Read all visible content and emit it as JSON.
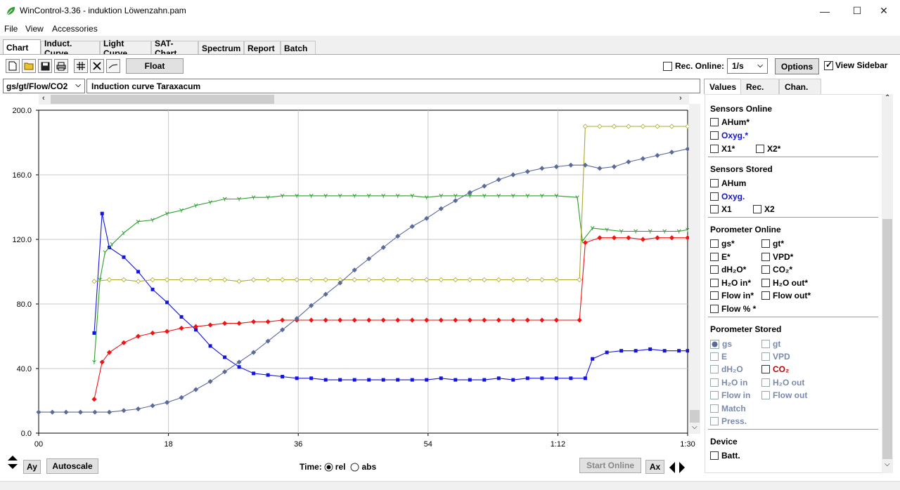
{
  "window": {
    "title": "WinControl-3.36 - induktion Löwenzahn.pam",
    "minimize": "—",
    "maximize": "☐",
    "close": "✕"
  },
  "menu": [
    "File",
    "View",
    "Accessories"
  ],
  "tabs": [
    "Chart",
    "Induct. Curve",
    "Light Curve",
    "SAT-Chart",
    "Spectrum",
    "Report",
    "Batch"
  ],
  "toolbar": {
    "icons": [
      "new-file-icon",
      "open-folder-icon",
      "save-icon",
      "print-icon",
      "grid-icon",
      "cross-icon",
      "line-icon"
    ],
    "float_label": "Float",
    "rec_online_label": "Rec. Online:",
    "rate_value": "1/s",
    "options_label": "Options",
    "view_sidebar_label": "View Sidebar",
    "view_sidebar_checked": true
  },
  "chart_header": {
    "channel": "gs/gt/Flow/CO2",
    "curve_name": "Induction curve Taraxacum"
  },
  "chart_data": {
    "type": "line",
    "xlabel": "",
    "ylabel": "",
    "xlim": [
      0,
      90
    ],
    "ylim": [
      0,
      200
    ],
    "x_ticks": [
      0,
      18,
      36,
      54,
      72,
      90
    ],
    "x_tick_labels": [
      "00",
      "18",
      "36",
      "54",
      "1:12",
      "1:30"
    ],
    "y_ticks": [
      0,
      40,
      80,
      120,
      160,
      200
    ],
    "y_tick_labels": [
      "0.0",
      "40.0",
      "80.0",
      "120.0",
      "160.0",
      "200.0"
    ],
    "grid": true,
    "series": [
      {
        "color": "#1414e0",
        "marker": "square",
        "x": [
          7.7,
          8.8,
          9.8,
          11.8,
          13.8,
          15.8,
          17.8,
          19.8,
          21.8,
          23.8,
          25.8,
          27.8,
          29.8,
          31.8,
          33.8,
          35.8,
          37.8,
          39.8,
          41.8,
          43.8,
          45.8,
          47.8,
          49.8,
          51.8,
          53.8,
          55.8,
          57.8,
          59.8,
          61.8,
          63.8,
          65.8,
          67.8,
          69.8,
          71.8,
          73.8,
          75.8,
          76.8,
          78.8,
          80.8,
          82.8,
          84.8,
          86.8,
          88.8,
          90
        ],
        "y": [
          62,
          136,
          115,
          109,
          100,
          89,
          81,
          72,
          64,
          54,
          47,
          41,
          37,
          36,
          35,
          34,
          34,
          33,
          33,
          33,
          33,
          33,
          33,
          33,
          33,
          34,
          33,
          33,
          33,
          34,
          33,
          34,
          34,
          34,
          34,
          34,
          46,
          50,
          51,
          51,
          52,
          51,
          51,
          51
        ]
      },
      {
        "color": "#2aa02a",
        "marker": "tick",
        "x": [
          7.7,
          8.5,
          9.2,
          10.2,
          11.8,
          13.8,
          15.8,
          17.8,
          19.8,
          21.8,
          23.8,
          25.8,
          27.8,
          29.8,
          31.8,
          33.8,
          35.8,
          37.8,
          39.8,
          41.8,
          43.8,
          45.8,
          47.8,
          49.8,
          51.8,
          53.8,
          55.8,
          57.8,
          59.8,
          61.8,
          63.8,
          65.8,
          67.8,
          69.8,
          71.8,
          74.7,
          75.4,
          76.8,
          78.8,
          80.8,
          82.8,
          84.8,
          86.8,
          88.8,
          90
        ],
        "y": [
          44,
          95,
          112,
          117,
          124,
          131,
          132,
          136,
          138,
          141,
          143,
          145,
          145,
          146,
          146,
          147,
          147,
          147,
          147,
          147,
          147,
          147,
          147,
          147,
          147,
          146,
          147,
          147,
          147,
          147,
          147,
          147,
          147,
          147,
          147,
          146,
          119,
          127,
          126,
          125,
          125,
          125,
          125,
          125,
          126
        ]
      },
      {
        "color": "#aaa82a",
        "marker": "diamond",
        "x": [
          7.7,
          9.8,
          11.8,
          13.8,
          15.8,
          17.8,
          19.8,
          21.8,
          23.8,
          25.8,
          27.8,
          29.8,
          31.8,
          33.8,
          35.8,
          37.8,
          39.8,
          41.8,
          43.8,
          45.8,
          47.8,
          49.8,
          51.8,
          53.8,
          55.8,
          57.8,
          59.8,
          61.8,
          63.8,
          65.8,
          67.8,
          69.8,
          71.8,
          75.0,
          75.8,
          77.8,
          79.8,
          81.8,
          83.8,
          85.8,
          87.8,
          90
        ],
        "y": [
          94,
          95,
          95,
          94,
          95,
          95,
          95,
          95,
          95,
          95,
          94,
          95,
          95,
          95,
          95,
          95,
          95,
          95,
          95,
          95,
          95,
          95,
          95,
          95,
          95,
          95,
          95,
          95,
          95,
          95,
          95,
          95,
          95,
          95,
          190,
          190,
          190,
          190,
          190,
          190,
          190,
          190
        ]
      },
      {
        "color": "#ee1414",
        "marker": "diamond",
        "x": [
          7.7,
          8.8,
          9.8,
          11.8,
          13.8,
          15.8,
          17.8,
          19.8,
          21.8,
          23.8,
          25.8,
          27.8,
          29.8,
          31.8,
          33.8,
          35.8,
          37.8,
          39.8,
          41.8,
          43.8,
          45.8,
          47.8,
          49.8,
          51.8,
          53.8,
          55.8,
          57.8,
          59.8,
          61.8,
          63.8,
          65.8,
          67.8,
          69.8,
          71.8,
          75.0,
          75.8,
          77.8,
          79.8,
          81.8,
          83.8,
          85.8,
          87.8,
          90
        ],
        "y": [
          21,
          44,
          50,
          56,
          60,
          62,
          63,
          65,
          66,
          67,
          68,
          68,
          69,
          69,
          70,
          70,
          70,
          70,
          70,
          70,
          70,
          70,
          70,
          70,
          70,
          70,
          70,
          70,
          70,
          70,
          70,
          70,
          70,
          70,
          70,
          118,
          121,
          121,
          121,
          120,
          121,
          121,
          121
        ]
      },
      {
        "color": "#5a6a9a",
        "marker": "diamond",
        "x": [
          0,
          1.9,
          3.8,
          5.8,
          7.8,
          9.8,
          11.8,
          13.8,
          15.8,
          17.8,
          19.8,
          21.8,
          23.8,
          25.8,
          27.8,
          29.8,
          31.8,
          33.8,
          35.8,
          37.8,
          39.8,
          41.8,
          43.8,
          45.8,
          47.8,
          49.8,
          51.8,
          53.8,
          55.8,
          57.8,
          59.8,
          61.8,
          63.8,
          65.8,
          67.8,
          69.8,
          71.8,
          73.8,
          75.8,
          77.8,
          79.8,
          81.8,
          83.8,
          85.8,
          87.8,
          90
        ],
        "y": [
          13,
          13,
          13,
          13,
          13,
          13,
          14,
          15,
          17,
          19,
          22,
          27,
          32,
          38,
          44,
          50,
          57,
          64,
          71,
          79,
          86,
          93,
          101,
          108,
          115,
          122,
          128,
          133,
          139,
          144,
          149,
          153,
          157,
          160,
          162,
          164,
          165,
          166,
          166,
          164,
          165,
          168,
          170,
          172,
          174,
          176
        ]
      }
    ]
  },
  "bottom": {
    "ay_label": "Ay",
    "autoscale_label": "Autoscale",
    "time_label": "Time:",
    "rel_label": "rel",
    "abs_label": "abs",
    "time_mode": "rel",
    "start_online_label": "Start Online",
    "ax_label": "Ax"
  },
  "sidebar": {
    "tabs": [
      "Values",
      "Rec.",
      "Chan."
    ],
    "sections": {
      "sensors_online": {
        "title": "Sensors Online",
        "ahum": "AHum*",
        "oxyg": "Oxyg.*",
        "x1": "X1*",
        "x2": "X2*"
      },
      "sensors_stored": {
        "title": "Sensors Stored",
        "ahum": "AHum",
        "oxyg": "Oxyg.",
        "x1": "X1",
        "x2": "X2"
      },
      "porometer_online": {
        "title": "Porometer Online",
        "gs": "gs*",
        "gt": "gt*",
        "e": "E*",
        "vpd": "VPD*",
        "dh2o": "dH₂O*",
        "co2": "CO₂*",
        "h2o_in": "H₂O in*",
        "h2o_out": "H₂O out*",
        "flow_in": "Flow in*",
        "flow_out": "Flow out*",
        "flow_pct": "Flow % *"
      },
      "porometer_stored": {
        "title": "Porometer Stored",
        "gs": "gs",
        "gt": "gt",
        "e": "E",
        "vpd": "VPD",
        "dh2o": "dH₂O",
        "co2": "CO₂",
        "h2o_in": "H₂O in",
        "h2o_out": "H₂O out",
        "flow_in": "Flow in",
        "flow_out": "Flow out",
        "match": "Match",
        "press": "Press."
      },
      "device": {
        "title": "Device",
        "batt": "Batt."
      }
    }
  }
}
